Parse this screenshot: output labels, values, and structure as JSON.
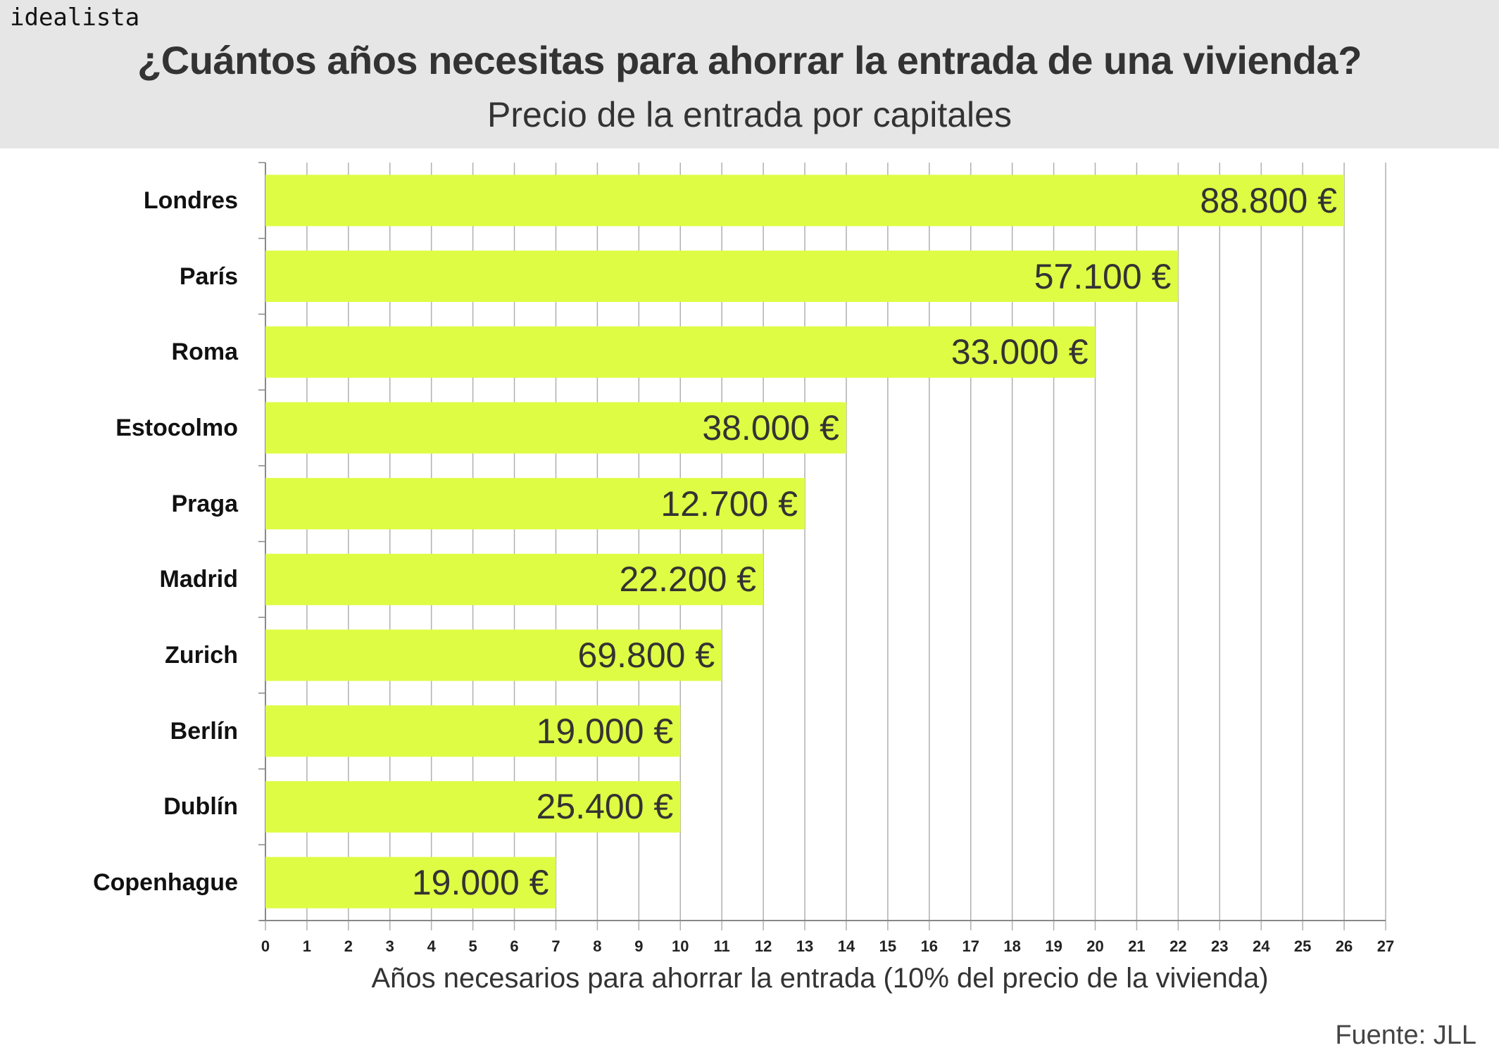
{
  "brand": "idealista",
  "colors": {
    "bar": "#dffc44",
    "header_bg": "#e6e6e6",
    "text": "#333333",
    "grid": "#b0b0b0"
  },
  "chart_data": {
    "type": "bar",
    "orientation": "horizontal",
    "title": "¿Cuántos años necesitas para ahorrar la entrada de una vivienda?",
    "subtitle": "Precio de la entrada por capitales",
    "xlabel": "Años necesarios para ahorrar la entrada (10% del precio de la vivienda)",
    "source": "Fuente: JLL",
    "xlim": [
      0,
      27
    ],
    "xticks": [
      0,
      1,
      2,
      3,
      4,
      5,
      6,
      7,
      8,
      9,
      10,
      11,
      12,
      13,
      14,
      15,
      16,
      17,
      18,
      19,
      20,
      21,
      22,
      23,
      24,
      25,
      26,
      27
    ],
    "grid": true,
    "categories": [
      "Londres",
      "París",
      "Roma",
      "Estocolmo",
      "Praga",
      "Madrid",
      "Zurich",
      "Berlín",
      "Dublín",
      "Copenhague"
    ],
    "values": [
      26,
      22,
      20,
      14,
      13,
      12,
      11,
      10,
      10,
      7
    ],
    "data_labels": [
      "88.800 €",
      "57.100 €",
      "33.000 €",
      "38.000 €",
      "12.700 €",
      "22.200 €",
      "69.800 €",
      "19.000 €",
      "25.400 €",
      "19.000 €"
    ]
  }
}
